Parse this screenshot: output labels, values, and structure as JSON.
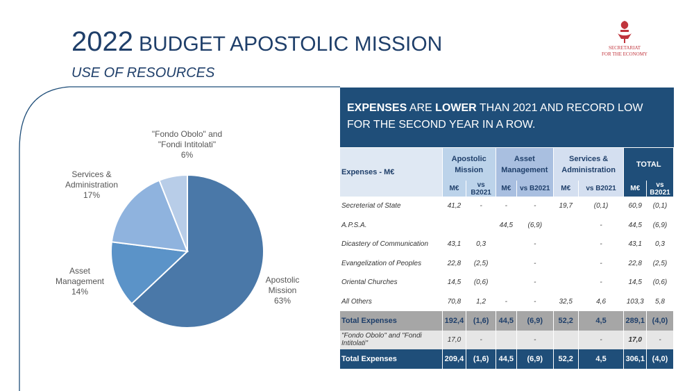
{
  "header": {
    "year": "2022",
    "title": "BUDGET APOSTOLIC MISSION",
    "subtitle": "USE OF RESOURCES"
  },
  "logo": {
    "line1": "SECRETARIAT",
    "line2": "FOR THE ECONOMY"
  },
  "banner": {
    "b1": "EXPENSES",
    "t1": " ARE ",
    "b2": "LOWER",
    "t2": " THAN 2021 AND RECORD LOW FOR THE SECOND YEAR IN A ROW."
  },
  "chart_data": {
    "type": "pie",
    "slices": [
      {
        "label": "Apostolic Mission",
        "pct_label": "63%",
        "value": 63,
        "color": "#4a78a8"
      },
      {
        "label": "Asset Management",
        "pct_label": "14%",
        "value": 14,
        "color": "#5b93c8"
      },
      {
        "label": "Services & Administration",
        "pct_label": "17%",
        "value": 17,
        "color": "#8fb3de"
      },
      {
        "label": "\"Fondo Obolo\" and \"Fondi Intitolati\"",
        "pct_label": "6%",
        "value": 6,
        "color": "#b8cde8"
      }
    ]
  },
  "table": {
    "corner": "Expenses - M€",
    "groups": [
      "Apostolic Mission",
      "Asset Management",
      "Services & Administration",
      "TOTAL"
    ],
    "sub": [
      "M€",
      "vs B2021"
    ],
    "rows": [
      {
        "label": "Secreteriat of State",
        "v": [
          "41,2",
          "-",
          "-",
          "-",
          "19,7",
          "(0,1)",
          "60,9",
          "(0,1)"
        ]
      },
      {
        "label": "A.P.S.A.",
        "v": [
          "",
          "",
          "44,5",
          "(6,9)",
          "",
          "-",
          "44,5",
          "(6,9)"
        ]
      },
      {
        "label": "Dicastery of Communication",
        "v": [
          "43,1",
          "0,3",
          "",
          "-",
          "",
          "-",
          "43,1",
          "0,3"
        ]
      },
      {
        "label": "Evangelization of Peoples",
        "v": [
          "22,8",
          "(2,5)",
          "",
          "-",
          "",
          "-",
          "22,8",
          "(2,5)"
        ]
      },
      {
        "label": "Oriental Churches",
        "v": [
          "14,5",
          "(0,6)",
          "",
          "-",
          "",
          "-",
          "14,5",
          "(0,6)"
        ]
      },
      {
        "label": "All Others",
        "v": [
          "70,8",
          "1,2",
          "-",
          "-",
          "32,5",
          "4,6",
          "103,3",
          "5,8"
        ]
      }
    ],
    "total": {
      "label": "Total Expenses",
      "v": [
        "192,4",
        "(1,6)",
        "44,5",
        "(6,9)",
        "52,2",
        "4,5",
        "289,1",
        "(4,0)"
      ]
    },
    "fondo": {
      "label": "\"Fondo Obolo\" and  \"Fondi Intitolati\"",
      "v": [
        "17,0",
        "-",
        "",
        "-",
        "",
        "-",
        "17,0",
        "-"
      ]
    },
    "grand": {
      "label": "Total Expenses",
      "v": [
        "209,4",
        "(1,6)",
        "44,5",
        "(6,9)",
        "52,2",
        "4,5",
        "306,1",
        "(4,0)"
      ]
    }
  }
}
